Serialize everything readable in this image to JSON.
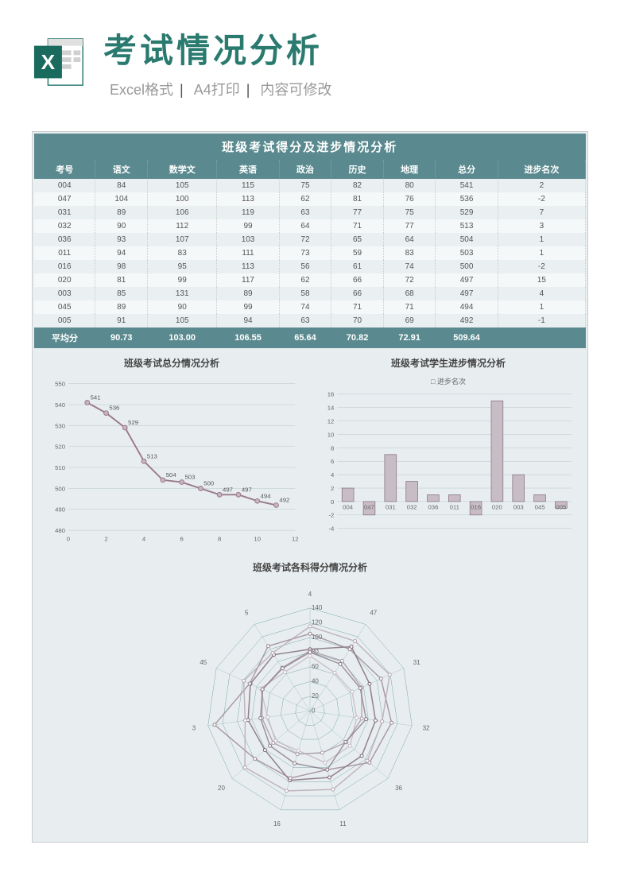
{
  "header": {
    "main_title": "考试情况分析",
    "subtitle_parts": [
      "Excel格式",
      "A4打印",
      "内容可修改"
    ]
  },
  "table": {
    "title": "班级考试得分及进步情况分析",
    "columns": [
      "考号",
      "语文",
      "数学文",
      "英语",
      "政治",
      "历史",
      "地理",
      "总分",
      "进步名次"
    ],
    "rows": [
      [
        "004",
        "84",
        "105",
        "115",
        "75",
        "82",
        "80",
        "541",
        "2"
      ],
      [
        "047",
        "104",
        "100",
        "113",
        "62",
        "81",
        "76",
        "536",
        "-2"
      ],
      [
        "031",
        "89",
        "106",
        "119",
        "63",
        "77",
        "75",
        "529",
        "7"
      ],
      [
        "032",
        "90",
        "112",
        "99",
        "64",
        "71",
        "77",
        "513",
        "3"
      ],
      [
        "036",
        "93",
        "107",
        "103",
        "72",
        "65",
        "64",
        "504",
        "1"
      ],
      [
        "011",
        "94",
        "83",
        "111",
        "73",
        "59",
        "83",
        "503",
        "1"
      ],
      [
        "016",
        "98",
        "95",
        "113",
        "56",
        "61",
        "74",
        "500",
        "-2"
      ],
      [
        "020",
        "81",
        "99",
        "117",
        "62",
        "66",
        "72",
        "497",
        "15"
      ],
      [
        "003",
        "85",
        "131",
        "89",
        "58",
        "66",
        "68",
        "497",
        "4"
      ],
      [
        "045",
        "89",
        "90",
        "99",
        "74",
        "71",
        "71",
        "494",
        "1"
      ],
      [
        "005",
        "91",
        "105",
        "94",
        "63",
        "70",
        "69",
        "492",
        "-1"
      ]
    ],
    "footer": [
      "平均分",
      "90.73",
      "103.00",
      "106.55",
      "65.64",
      "70.82",
      "72.91",
      "509.64",
      ""
    ]
  },
  "line_chart": {
    "title": "班级考试总分情况分析",
    "y_min": 480,
    "y_max": 550,
    "y_step": 10,
    "x_min": 0,
    "x_max": 12,
    "x_step": 2,
    "values": [
      541,
      536,
      529,
      513,
      504,
      503,
      500,
      497,
      497,
      494,
      492
    ],
    "line_color": "#9a7a8a",
    "marker_color": "#c5b5c0",
    "bg_color": "#e8eef0",
    "grid_color": "#b5c5c8"
  },
  "bar_chart": {
    "title": "班级考试学生进步情况分析",
    "legend": "进步名次",
    "y_min": -4,
    "y_max": 16,
    "y_step": 2,
    "categories": [
      "004",
      "047",
      "031",
      "032",
      "036",
      "011",
      "016",
      "020",
      "003",
      "045",
      "005"
    ],
    "values": [
      2,
      -2,
      7,
      3,
      1,
      1,
      -2,
      15,
      4,
      1,
      -1
    ],
    "bar_color": "#c8bcc5",
    "bar_stroke": "#8a7585",
    "bg_color": "#e8eef0"
  },
  "radar_chart": {
    "title": "班级考试各科得分情况分析",
    "axes": [
      "4",
      "47",
      "31",
      "32",
      "36",
      "11",
      "16",
      "20",
      "3",
      "45",
      "5"
    ],
    "rings": [
      0,
      20,
      40,
      60,
      80,
      100,
      120,
      140
    ],
    "ring_labels": [
      "0",
      "20",
      "40",
      "60",
      "80",
      "100",
      "120",
      "140"
    ],
    "max_val": 140,
    "series": [
      {
        "color": "#7a6572",
        "values": [
          84,
          104,
          89,
          90,
          93,
          94,
          98,
          81,
          85,
          89,
          91
        ]
      },
      {
        "color": "#9a8592",
        "values": [
          105,
          100,
          106,
          112,
          107,
          83,
          95,
          99,
          131,
          90,
          105
        ]
      },
      {
        "color": "#b5a5b2",
        "values": [
          115,
          113,
          119,
          99,
          103,
          111,
          113,
          117,
          89,
          99,
          94
        ]
      },
      {
        "color": "#c5b8c2",
        "values": [
          75,
          62,
          63,
          64,
          72,
          73,
          56,
          62,
          58,
          74,
          63
        ]
      },
      {
        "color": "#a89aa5",
        "values": [
          82,
          81,
          77,
          71,
          65,
          59,
          61,
          66,
          66,
          71,
          70
        ]
      },
      {
        "color": "#8a7a88",
        "values": [
          80,
          76,
          75,
          77,
          64,
          83,
          74,
          72,
          68,
          71,
          69
        ]
      }
    ],
    "bg_color": "#e8eef0",
    "grid_color": "#7aa5aa"
  },
  "colors": {
    "header_teal": "#5a8a8f",
    "panel_bg": "#e8eef0"
  }
}
